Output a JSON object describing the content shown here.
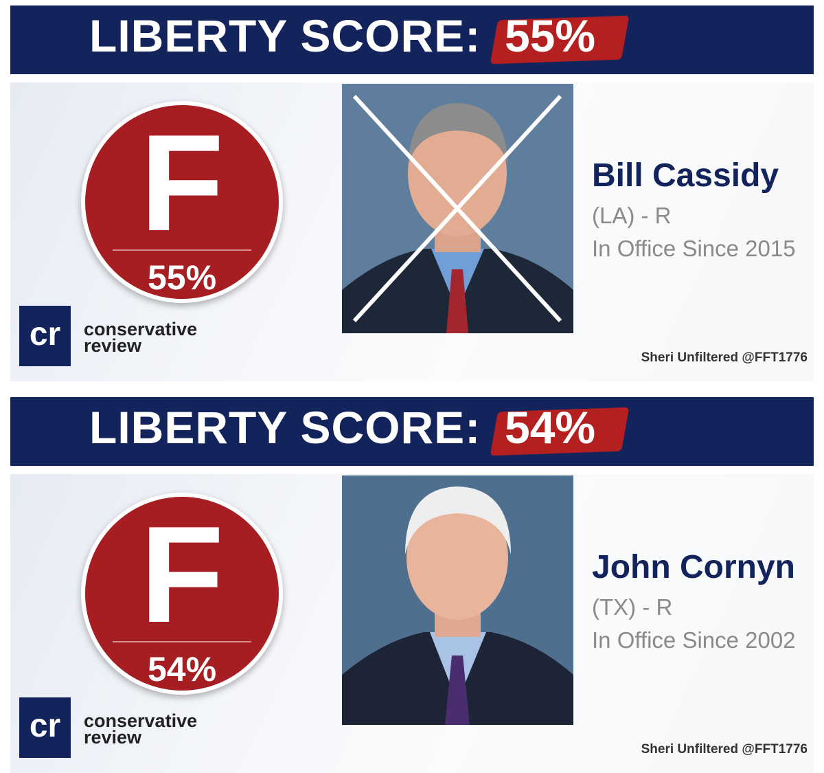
{
  "cards": [
    {
      "header_label": "LIBERTY SCORE:",
      "header_score": "55%",
      "grade": "F",
      "grade_percent": "55%",
      "logo_mark": "cr",
      "logo_line1": "conservative",
      "logo_line2": "review",
      "name": "Bill Cassidy",
      "state_party": "(LA) - R",
      "in_office": "In Office Since 2015",
      "credit": "Sheri Unfiltered @FFT1776"
    },
    {
      "header_label": "LIBERTY SCORE:",
      "header_score": "54%",
      "grade": "F",
      "grade_percent": "54%",
      "logo_mark": "cr",
      "logo_line1": "conservative",
      "logo_line2": "review",
      "name": "John Cornyn",
      "state_party": "(TX) - R",
      "in_office": "In Office Since 2002",
      "credit": "Sheri Unfiltered @FFT1776"
    }
  ]
}
